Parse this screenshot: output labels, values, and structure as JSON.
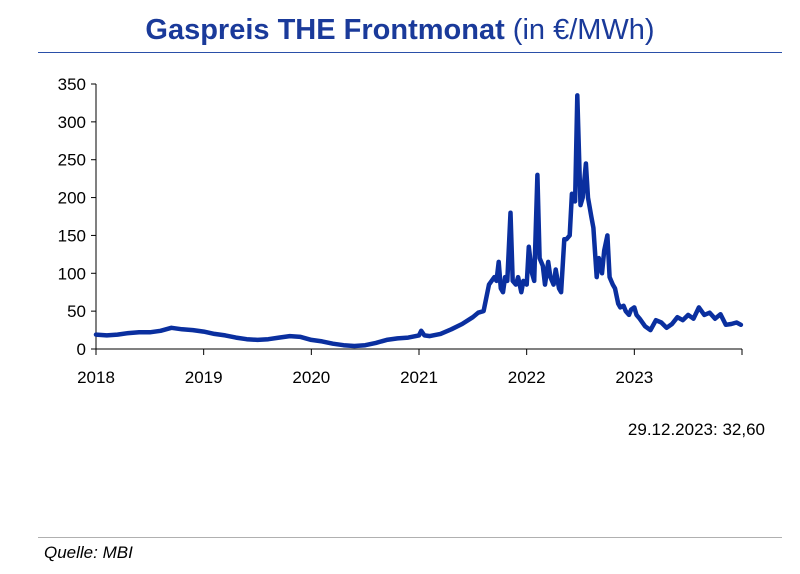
{
  "header": {
    "title_bold": "Gaspreis THE Frontmonat",
    "title_unit": "(in €/MWh)"
  },
  "annotation": "29.12.2023: 32,60",
  "source": "Quelle: MBI",
  "colors": {
    "line": "#0a2f9f",
    "title": "#1a3a9a",
    "axis": "#000000"
  },
  "chart_data": {
    "type": "line",
    "title": "Gaspreis THE Frontmonat (in €/MWh)",
    "xlabel": "",
    "ylabel": "",
    "x_ticks": [
      "2018",
      "2019",
      "2020",
      "2021",
      "2022",
      "2023"
    ],
    "y_ticks": [
      0,
      50,
      100,
      150,
      200,
      250,
      300,
      350
    ],
    "ylim": [
      0,
      350
    ],
    "xlim": [
      2018.0,
      2024.0
    ],
    "grid": false,
    "legend": "none",
    "series": [
      {
        "x": [
          2018.0,
          2018.1,
          2018.2,
          2018.3,
          2018.4,
          2018.5,
          2018.6,
          2018.7,
          2018.8,
          2018.9,
          2019.0,
          2019.1,
          2019.2,
          2019.3,
          2019.4,
          2019.5,
          2019.6,
          2019.7,
          2019.8,
          2019.9,
          2020.0,
          2020.1,
          2020.2,
          2020.3,
          2020.4,
          2020.5,
          2020.6,
          2020.7,
          2020.8,
          2020.9,
          2021.0,
          2021.02,
          2021.05,
          2021.1,
          2021.2,
          2021.3,
          2021.4,
          2021.5,
          2021.55,
          2021.6,
          2021.65,
          2021.7,
          2021.72,
          2021.74,
          2021.76,
          2021.78,
          2021.8,
          2021.82,
          2021.85,
          2021.87,
          2021.9,
          2021.92,
          2021.95,
          2021.97,
          2022.0,
          2022.02,
          2022.05,
          2022.07,
          2022.1,
          2022.12,
          2022.15,
          2022.17,
          2022.2,
          2022.22,
          2022.25,
          2022.27,
          2022.3,
          2022.32,
          2022.35,
          2022.37,
          2022.4,
          2022.42,
          2022.45,
          2022.47,
          2022.5,
          2022.52,
          2022.55,
          2022.57,
          2022.6,
          2022.62,
          2022.65,
          2022.67,
          2022.7,
          2022.72,
          2022.75,
          2022.77,
          2022.8,
          2022.82,
          2022.85,
          2022.87,
          2022.9,
          2022.92,
          2022.95,
          2022.97,
          2023.0,
          2023.02,
          2023.05,
          2023.1,
          2023.15,
          2023.2,
          2023.25,
          2023.3,
          2023.35,
          2023.4,
          2023.45,
          2023.5,
          2023.55,
          2023.6,
          2023.65,
          2023.7,
          2023.75,
          2023.8,
          2023.85,
          2023.9,
          2023.95,
          2023.99
        ],
        "y": [
          19,
          18,
          19,
          21,
          22,
          22,
          24,
          28,
          26,
          25,
          23,
          20,
          18,
          15,
          13,
          12,
          13,
          15,
          17,
          16,
          12,
          10,
          7,
          5,
          4,
          5,
          8,
          12,
          14,
          15,
          18,
          24,
          18,
          17,
          20,
          26,
          33,
          42,
          48,
          50,
          85,
          95,
          90,
          115,
          80,
          75,
          95,
          90,
          180,
          90,
          85,
          95,
          75,
          90,
          85,
          135,
          100,
          90,
          230,
          120,
          110,
          85,
          115,
          95,
          85,
          105,
          80,
          75,
          145,
          145,
          150,
          205,
          195,
          335,
          190,
          200,
          245,
          200,
          175,
          160,
          95,
          120,
          100,
          130,
          150,
          95,
          85,
          80,
          60,
          55,
          57,
          50,
          45,
          52,
          55,
          45,
          40,
          30,
          25,
          38,
          35,
          28,
          33,
          42,
          38,
          45,
          40,
          55,
          45,
          48,
          40,
          46,
          32,
          33,
          35,
          32
        ]
      }
    ]
  }
}
